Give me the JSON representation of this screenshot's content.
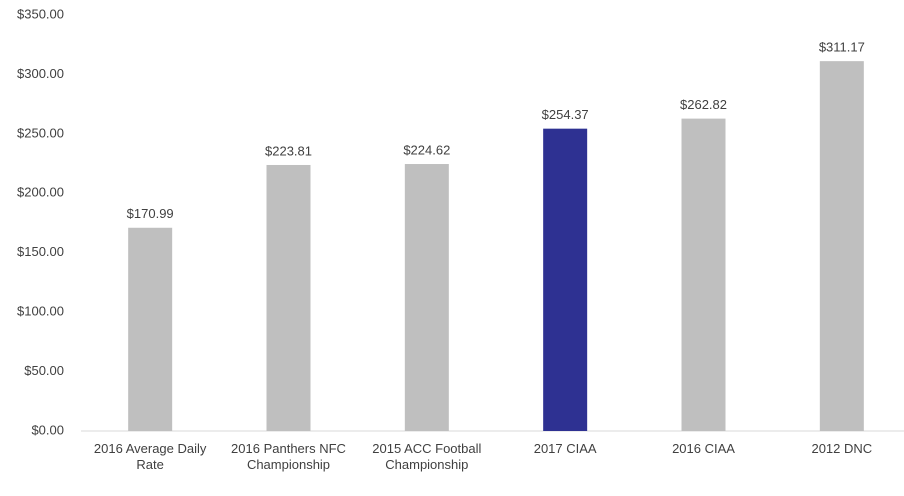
{
  "chart_data": {
    "type": "bar",
    "categories": [
      "2016 Average Daily Rate",
      "2016 Panthers NFC Championship",
      "2015 ACC Football Championship",
      "2017 CIAA",
      "2016 CIAA",
      "2012 DNC"
    ],
    "values": [
      170.99,
      223.81,
      224.62,
      254.37,
      262.82,
      311.17
    ],
    "value_labels": [
      "$170.99",
      "$223.81",
      "$224.62",
      "$254.37",
      "$262.82",
      "$311.17"
    ],
    "colors": [
      "#bfbfbf",
      "#bfbfbf",
      "#bfbfbf",
      "#2e3192",
      "#bfbfbf",
      "#bfbfbf"
    ],
    "ylim": [
      0,
      350
    ],
    "yticks": [
      {
        "value": 0,
        "label": "$0.00"
      },
      {
        "value": 50,
        "label": "$50.00"
      },
      {
        "value": 100,
        "label": "$100.00"
      },
      {
        "value": 150,
        "label": "$150.00"
      },
      {
        "value": 200,
        "label": "$200.00"
      },
      {
        "value": 250,
        "label": "$250.00"
      },
      {
        "value": 300,
        "label": "$300.00"
      },
      {
        "value": 350,
        "label": "$350.00"
      }
    ],
    "grid": false
  }
}
